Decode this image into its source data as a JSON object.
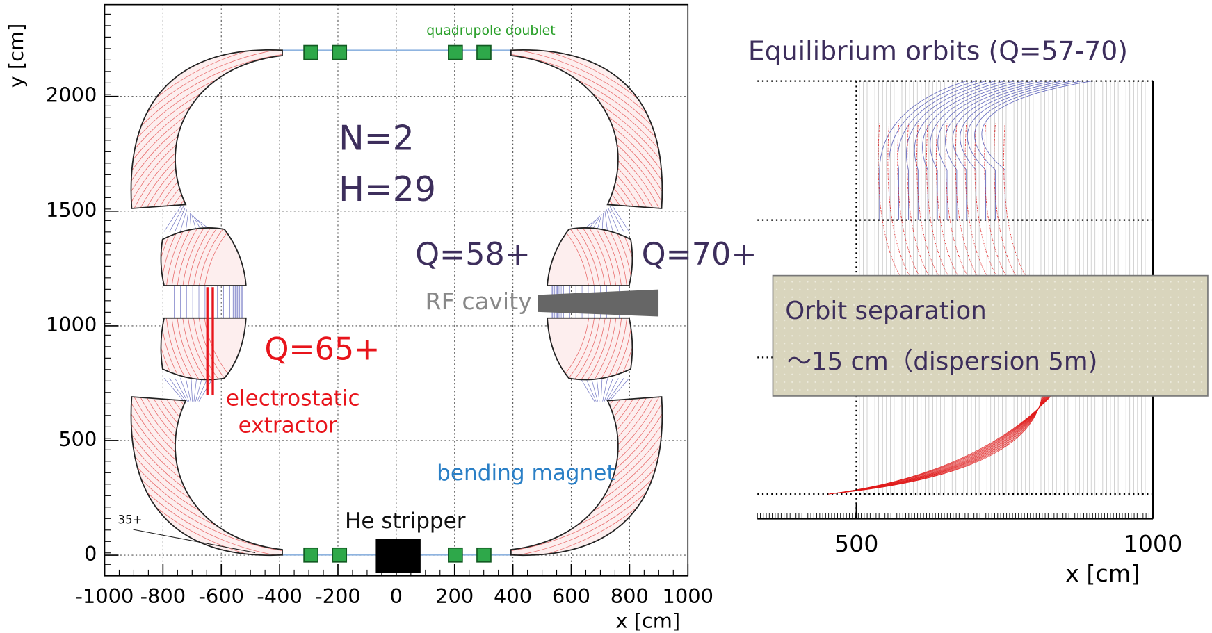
{
  "left_plot": {
    "xlabel": "x [cm]",
    "ylabel": "y [cm]",
    "xlim": [
      -1000,
      1000
    ],
    "ylim": [
      -90,
      2400
    ],
    "xticks": [
      -1000,
      -800,
      -600,
      -400,
      -200,
      0,
      200,
      400,
      600,
      800,
      1000
    ],
    "yticks": [
      0,
      500,
      1000,
      1500,
      2000
    ],
    "labels": {
      "quadrupole": "quadrupole doublet",
      "n": "N=2",
      "h": "H=29",
      "q58": "Q=58+",
      "q70": "Q=70+",
      "rf": "RF cavity",
      "q65": "Q=65+",
      "extractor_1": "electrostatic",
      "extractor_2": "extractor",
      "bending": "bending magnet",
      "stripper": "He stripper",
      "q35": "35+"
    }
  },
  "right_plot": {
    "title": "Equilibrium orbits (Q=57-70)",
    "xlabel": "x [cm]",
    "xlim": [
      333,
      1000
    ],
    "xticks": [
      500,
      1000
    ],
    "box": {
      "line_1": "Orbit separation",
      "line_2": "～15 cm（dispersion 5m)"
    }
  }
}
